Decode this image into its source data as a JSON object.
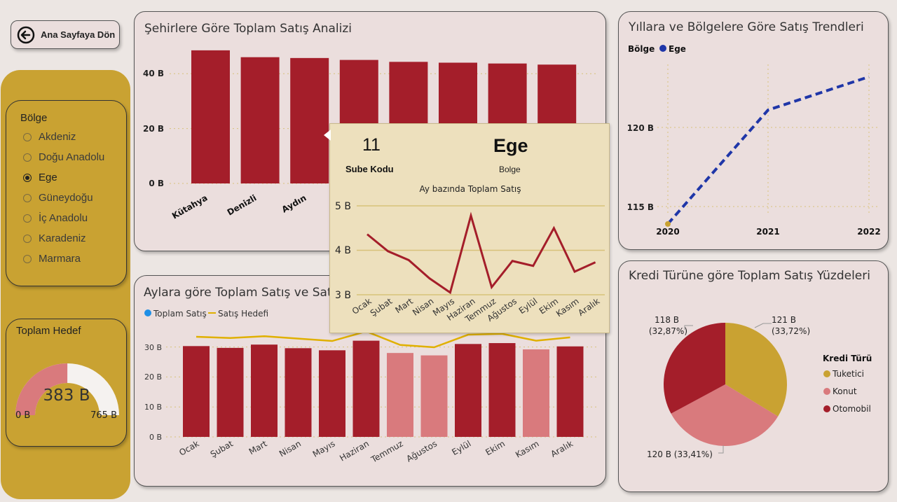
{
  "nav": {
    "back_label": "Ana Sayfaya Dön"
  },
  "city_chart": {
    "title": "Şehirlere Göre Toplam Satış Analizi",
    "y_ticks": [
      "0 B",
      "20 B",
      "40 B"
    ],
    "x_labels": [
      "Kütahya",
      "Denizli",
      "Aydın"
    ]
  },
  "month_chart": {
    "title": "Aylara göre Toplam Satış ve Satış Hedefi",
    "legend": [
      "Toplam Satış",
      "Satış Hedefi"
    ],
    "y_ticks": [
      "0 B",
      "10 B",
      "20 B",
      "30 B"
    ]
  },
  "trend_chart": {
    "title": "Yıllara ve Bölgelere Göre Satış Trendleri",
    "legend_title": "Bölge",
    "legend_item": "Ege",
    "y_ticks": [
      "115 B",
      "120 B"
    ]
  },
  "pie_chart": {
    "title": "Kredi Türüne göre Toplam Satış Yüzdeleri",
    "legend_title": "Kredi Türü",
    "legend": [
      "Tuketici",
      "Konut",
      "Otomobil"
    ],
    "labels": [
      {
        "line1": "121 B",
        "line2": "(33,72%)"
      },
      {
        "line1": "120 B (33,41%)",
        "line2": ""
      },
      {
        "line1": "118 B",
        "line2": "(32,87%)"
      }
    ]
  },
  "slicer": {
    "header": "Bölge",
    "options": [
      "Akdeniz",
      "Doğu Anadolu",
      "Ege",
      "Güneydoğu",
      "İç Anadolu",
      "Karadeniz",
      "Marmara"
    ],
    "selected": "Ege"
  },
  "gauge": {
    "title": "Toplam Hedef",
    "value_label": "383 B",
    "min_label": "0 B",
    "max_label": "765 B",
    "value": 383,
    "min": 0,
    "max": 765
  },
  "tooltip": {
    "code_value": "11",
    "code_label": "Sube Kodu",
    "region_value": "Ege",
    "region_label": "Bolge",
    "chart_title": "Ay bazında Toplam Satış",
    "y_ticks": [
      "3 B",
      "4 B",
      "5 B"
    ]
  },
  "colors": {
    "primary": "#a41e2a",
    "light": "#d97a7d",
    "gold": "#c9a232",
    "line_blue": "#1f36a8"
  },
  "chart_data": [
    {
      "type": "bar",
      "title": "Şehirlere Göre Toplam Satış Analizi",
      "categories": [
        "Kütahya",
        "Denizli",
        "Aydın",
        "",
        "",
        "",
        "",
        ""
      ],
      "values": [
        48.5,
        46.0,
        45.7,
        45.0,
        44.3,
        44.0,
        43.7,
        43.3
      ],
      "ylim": [
        0,
        52
      ]
    },
    {
      "type": "bar",
      "title": "Aylara göre Toplam Satış ve Satış Hedefi",
      "categories": [
        "Ocak",
        "Şubat",
        "Mart",
        "Nisan",
        "Mayıs",
        "Haziran",
        "Temmuz",
        "Ağustos",
        "Eylül",
        "Ekim",
        "Kasım",
        "Aralık"
      ],
      "series": [
        {
          "name": "Toplam Satış",
          "values": [
            30.3,
            29.7,
            30.8,
            29.6,
            28.9,
            32.1,
            28.0,
            27.2,
            31.0,
            31.3,
            29.2,
            30.2
          ]
        },
        {
          "name": "Satış Hedefi",
          "values": [
            33.4,
            33.0,
            33.6,
            32.8,
            32.0,
            35.2,
            30.7,
            29.9,
            34.1,
            34.4,
            32.1,
            33.2
          ]
        }
      ],
      "highlight": [
        true,
        true,
        true,
        true,
        true,
        true,
        false,
        false,
        true,
        true,
        false,
        true
      ],
      "ylim": [
        0,
        36
      ]
    },
    {
      "type": "line",
      "title": "Yıllara ve Bölgelere Göre Satış Trendleri",
      "x": [
        "2020",
        "2021",
        "2022"
      ],
      "series": [
        {
          "name": "Ege",
          "values": [
            113.9,
            121.1,
            123.2
          ]
        }
      ],
      "ylim": [
        113,
        125
      ]
    },
    {
      "type": "pie",
      "title": "Kredi Türüne göre Toplam Satış Yüzdeleri",
      "categories": [
        "Tuketici",
        "Konut",
        "Otomobil"
      ],
      "values": [
        121,
        120,
        118
      ],
      "percent": [
        33.72,
        33.41,
        32.87
      ]
    },
    {
      "type": "line",
      "title": "Ay bazında Toplam Satış",
      "x": [
        "Ocak",
        "Şubat",
        "Mart",
        "Nisan",
        "Mayıs",
        "Haziran",
        "Temmuz",
        "Ağustos",
        "Eylül",
        "Ekim",
        "Kasım",
        "Aralık"
      ],
      "series": [
        {
          "name": "Toplam Satış",
          "values": [
            4.36,
            3.98,
            3.78,
            3.37,
            3.05,
            4.78,
            3.17,
            3.76,
            3.65,
            4.5,
            3.52,
            3.73
          ]
        }
      ],
      "ylim": [
        2.9,
        5.2
      ]
    }
  ]
}
